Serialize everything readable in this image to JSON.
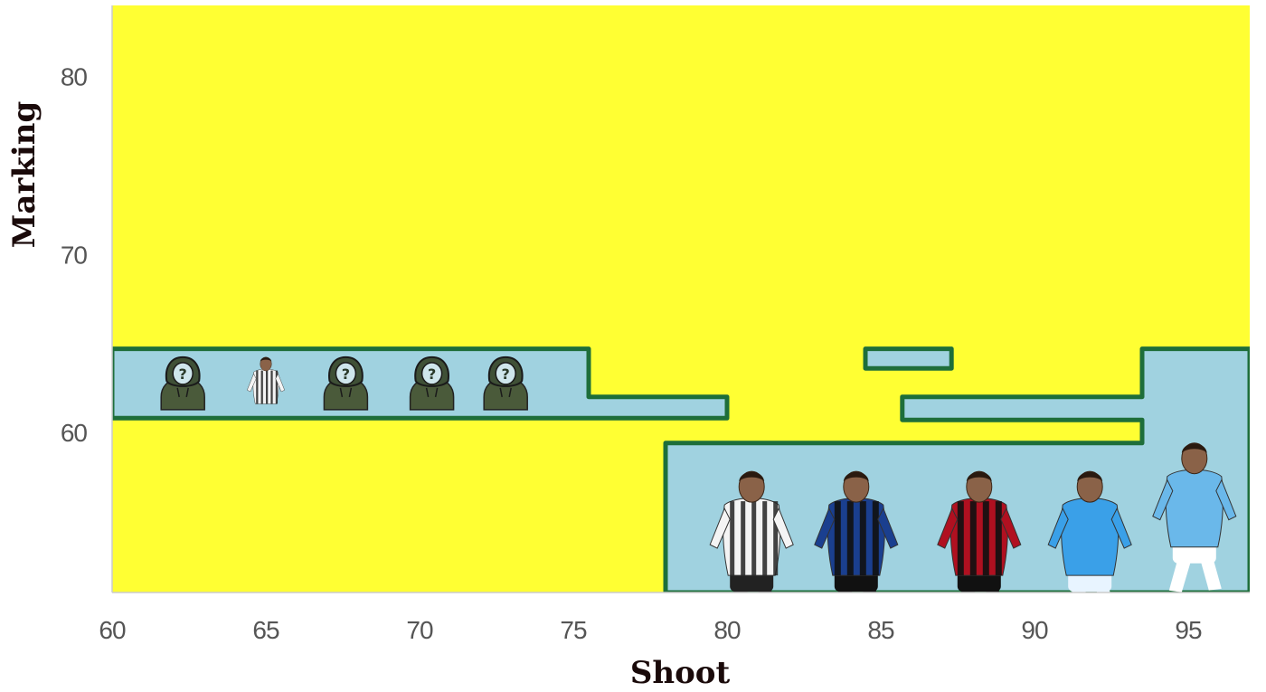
{
  "chart_data": {
    "type": "decision-regions",
    "xlabel": "Shoot",
    "ylabel": "Marking",
    "xlim": [
      60,
      97
    ],
    "ylim": [
      51,
      84
    ],
    "x_ticks": [
      60,
      65,
      70,
      75,
      80,
      85,
      90,
      95
    ],
    "y_ticks": [
      60,
      70,
      80
    ],
    "grid": false,
    "colors": {
      "background_region": "#ffff33",
      "highlight_region": "#a0d2e0",
      "boundary": "#1e6e3a",
      "axis_text": "#555555",
      "title_text": "#1a0a0a"
    },
    "regions": [
      {
        "class": "blue",
        "polygon": [
          [
            60,
            64.7
          ],
          [
            75.5,
            64.7
          ],
          [
            75.5,
            62
          ],
          [
            80,
            62
          ],
          [
            80,
            60.8
          ],
          [
            60,
            60.8
          ]
        ]
      },
      {
        "class": "blue",
        "polygon": [
          [
            84.5,
            64.7
          ],
          [
            87.3,
            64.7
          ],
          [
            87.3,
            63.6
          ],
          [
            84.5,
            63.6
          ]
        ]
      },
      {
        "class": "blue",
        "polygon": [
          [
            93.5,
            64.7
          ],
          [
            97,
            64.7
          ],
          [
            97,
            51
          ],
          [
            78,
            51
          ],
          [
            78,
            59.4
          ],
          [
            93.5,
            59.4
          ],
          [
            93.5,
            60.7
          ],
          [
            85.7,
            60.7
          ],
          [
            85.7,
            62
          ],
          [
            93.5,
            62
          ]
        ]
      }
    ],
    "markers": [
      {
        "x": 62.3,
        "y": 62.7,
        "icon": "unknown-player-icon"
      },
      {
        "x": 65,
        "y": 62.7,
        "icon": "player-photo-icon",
        "kit": "juventus"
      },
      {
        "x": 67.6,
        "y": 62.7,
        "icon": "unknown-player-icon"
      },
      {
        "x": 70.4,
        "y": 62.7,
        "icon": "unknown-player-icon"
      },
      {
        "x": 72.8,
        "y": 62.7,
        "icon": "unknown-player-icon"
      },
      {
        "x": 80.8,
        "y": 54.4,
        "icon": "player-photo-icon",
        "kit": "juventus"
      },
      {
        "x": 84.2,
        "y": 54.4,
        "icon": "player-photo-icon",
        "kit": "inter"
      },
      {
        "x": 88.2,
        "y": 54.4,
        "icon": "player-photo-icon",
        "kit": "milan"
      },
      {
        "x": 91.8,
        "y": 54.4,
        "icon": "player-photo-icon",
        "kit": "napoli"
      },
      {
        "x": 95.2,
        "y": 56,
        "icon": "player-photo-icon",
        "kit": "lazio"
      }
    ],
    "kit_colors": {
      "juventus": [
        "#f4f4f4",
        "#222222"
      ],
      "inter": [
        "#1a3f8f",
        "#111111"
      ],
      "milan": [
        "#b01020",
        "#111111"
      ],
      "napoli": [
        "#3aa0e8",
        "#e8f4ff"
      ],
      "lazio": [
        "#6ab8ea",
        "#ffffff"
      ]
    }
  }
}
